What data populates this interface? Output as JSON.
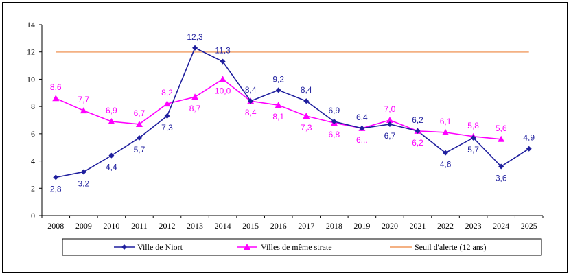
{
  "chart_data": {
    "type": "line",
    "title": "",
    "xlabel": "",
    "ylabel": "",
    "ylim": [
      0,
      14
    ],
    "yticks": [
      "0",
      "2",
      "4",
      "6",
      "8",
      "10",
      "12",
      "14"
    ],
    "categories": [
      "2008",
      "2009",
      "2010",
      "2011",
      "2012",
      "2013",
      "2014",
      "2015",
      "2016",
      "2017",
      "2018",
      "2019",
      "2020",
      "2021",
      "2022",
      "2023",
      "2024",
      "2025"
    ],
    "grid": false,
    "legend_position": "bottom",
    "series": [
      {
        "name": "Ville de Niort",
        "color": "#1F1F9E",
        "marker": "diamond",
        "values": [
          2.8,
          3.2,
          4.4,
          5.7,
          7.3,
          12.3,
          11.3,
          8.4,
          9.2,
          8.4,
          6.9,
          6.4,
          6.7,
          6.2,
          4.6,
          5.7,
          3.6,
          4.9
        ],
        "labels": [
          "2,8",
          "3,2",
          "4,4",
          "5,7",
          "7,3",
          "12,3",
          "11,3",
          "8,4",
          "9,2",
          "8,4",
          "6,9",
          "6,4",
          "6,7",
          "6,2",
          "4,6",
          "5,7",
          "3,6",
          "4,9"
        ]
      },
      {
        "name": "Villes de même strate",
        "color": "#FF00FF",
        "marker": "triangle",
        "values": [
          8.6,
          7.7,
          6.9,
          6.7,
          8.2,
          8.7,
          10.0,
          8.4,
          8.1,
          7.3,
          6.8,
          6.4,
          7.0,
          6.2,
          6.1,
          5.8,
          5.6,
          null
        ],
        "labels": [
          "8,6",
          "7,7",
          "6,9",
          "6,7",
          "8,2",
          "8,7",
          "10,0",
          "8,4",
          "8,1",
          "7,3",
          "6,8",
          "6...",
          "7,0",
          "6,2",
          "6,1",
          "5,8",
          "5,6",
          ""
        ]
      },
      {
        "name": "Seuil d'alerte (12 ans)",
        "color": "#F4B183",
        "marker": "none",
        "values": [
          12,
          12,
          12,
          12,
          12,
          12,
          12,
          12,
          12,
          12,
          12,
          12,
          12,
          12,
          12,
          12,
          12,
          12
        ],
        "labels": []
      }
    ]
  }
}
